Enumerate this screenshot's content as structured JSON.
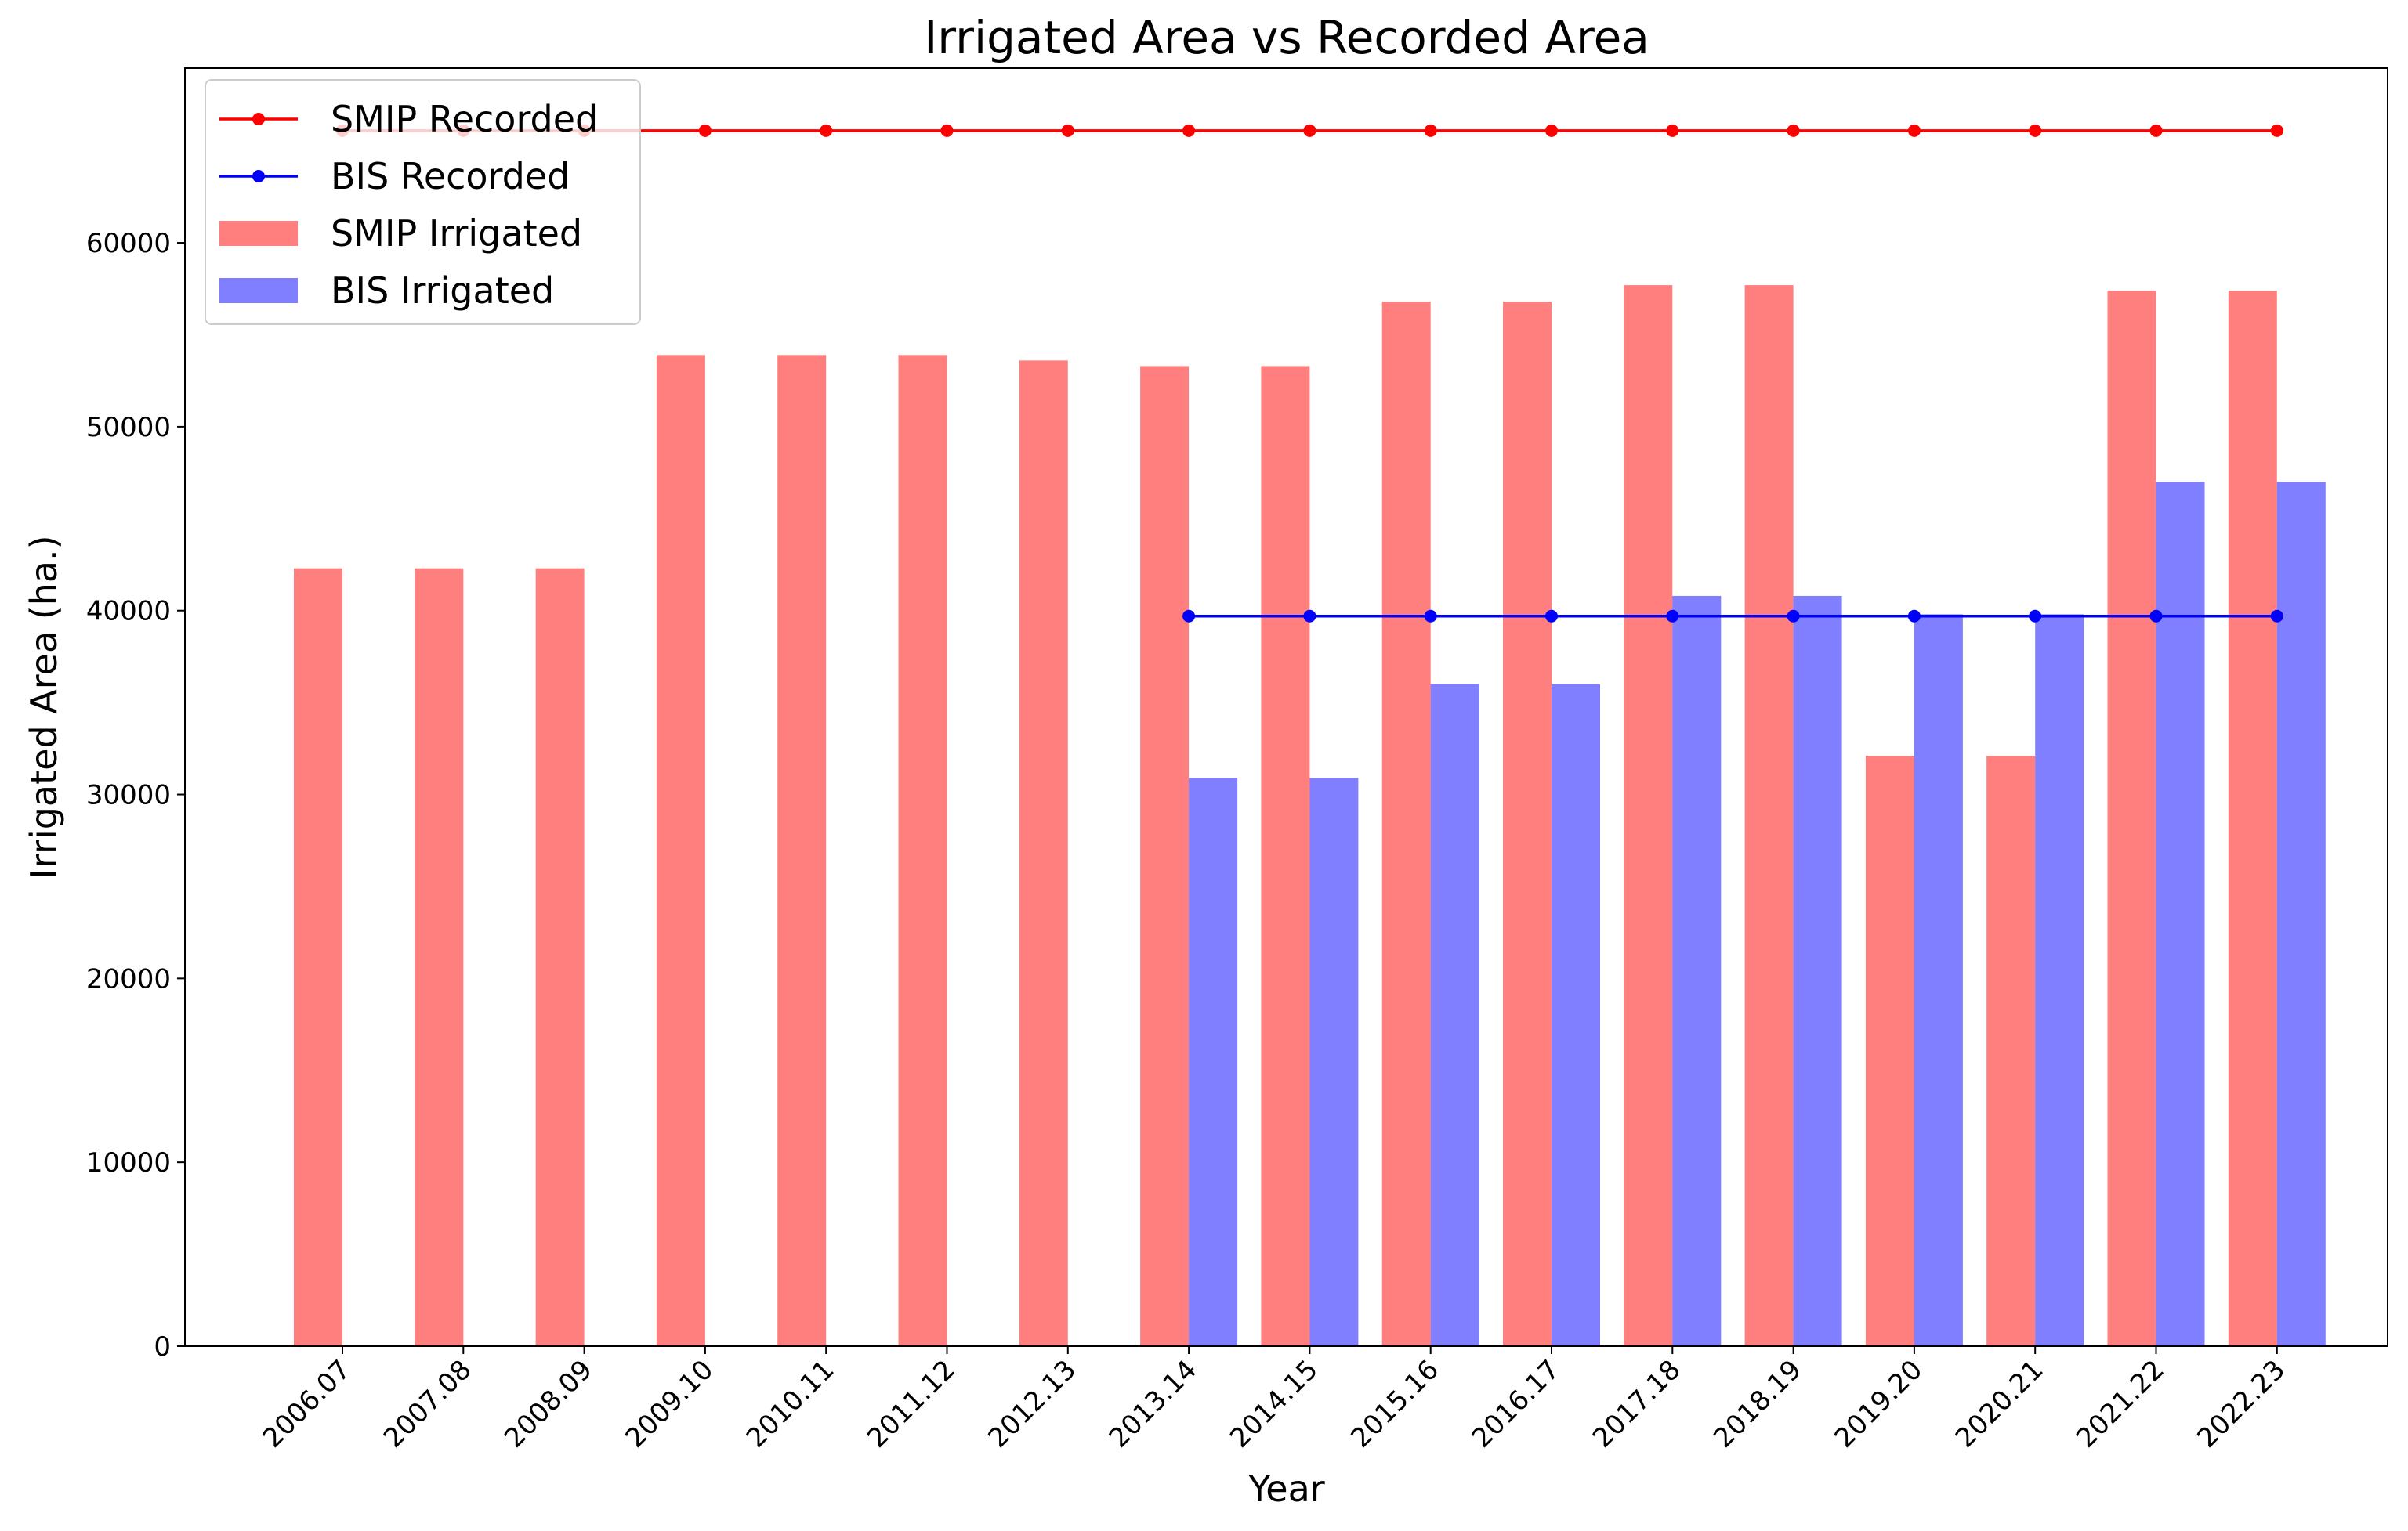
{
  "chart_data": {
    "type": "bar",
    "title": "Irrigated Area vs Recorded Area",
    "xlabel": "Year",
    "ylabel": "Irrigated Area (ha.)",
    "ylim": [
      0,
      69500
    ],
    "yticks": [
      0,
      10000,
      20000,
      30000,
      40000,
      50000,
      60000
    ],
    "ytick_labels": [
      "0",
      "10000",
      "20000",
      "30000",
      "40000",
      "50000",
      "60000"
    ],
    "grid": false,
    "legend_position": "top-left",
    "categories": [
      "2006.07",
      "2007.08",
      "2008.09",
      "2009.10",
      "2010.11",
      "2011.12",
      "2012.13",
      "2013.14",
      "2014.15",
      "2015.16",
      "2016.17",
      "2017.18",
      "2018.19",
      "2019.20",
      "2020.21",
      "2021.22",
      "2022.23"
    ],
    "series": [
      {
        "name": "SMIP Irrigated",
        "kind": "bar",
        "offset": "left",
        "color": "#ff0000",
        "alpha": 0.5,
        "values": [
          42300,
          42300,
          42300,
          53900,
          53900,
          53900,
          53600,
          53300,
          53300,
          56800,
          56800,
          57700,
          57700,
          32100,
          32100,
          57400,
          57400
        ]
      },
      {
        "name": "BIS Irrigated",
        "kind": "bar",
        "offset": "right",
        "color": "#0000ff",
        "alpha": 0.5,
        "values": [
          null,
          null,
          null,
          null,
          null,
          null,
          null,
          30900,
          30900,
          36000,
          36000,
          40800,
          40800,
          39800,
          39800,
          47000,
          47000
        ]
      },
      {
        "name": "SMIP Recorded",
        "kind": "line",
        "color": "#ff0000",
        "values": [
          66100,
          66100,
          66100,
          66100,
          66100,
          66100,
          66100,
          66100,
          66100,
          66100,
          66100,
          66100,
          66100,
          66100,
          66100,
          66100,
          66100
        ]
      },
      {
        "name": "BIS Recorded",
        "kind": "line",
        "color": "#0000ff",
        "values": [
          null,
          null,
          null,
          null,
          null,
          null,
          null,
          39700,
          39700,
          39700,
          39700,
          39700,
          39700,
          39700,
          39700,
          39700,
          39700
        ]
      }
    ],
    "legend_order": [
      "SMIP Recorded",
      "BIS Recorded",
      "SMIP Irrigated",
      "BIS Irrigated"
    ]
  }
}
